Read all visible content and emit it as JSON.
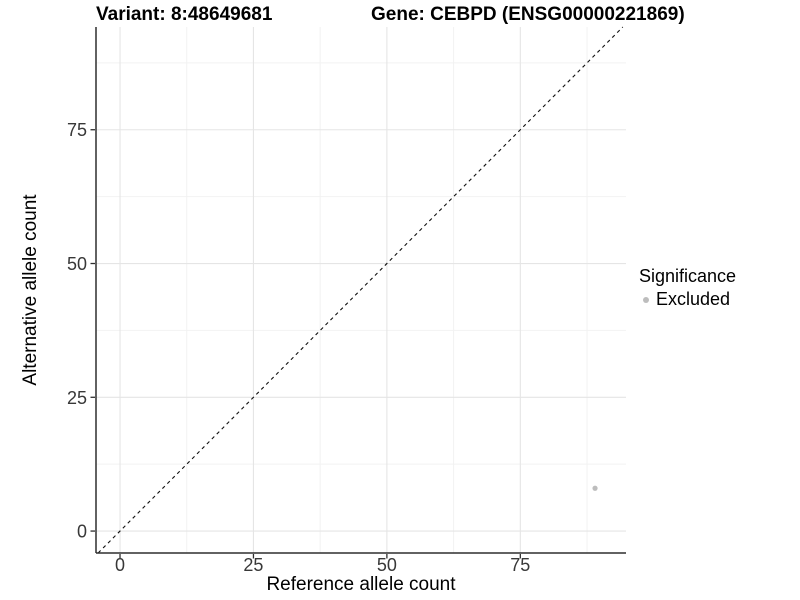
{
  "header": {
    "variant_title": "Variant: 8:48649681",
    "gene_title": "Gene: CEBPD (ENSG00000221869)"
  },
  "chart_data": {
    "type": "scatter",
    "title": "Variant: 8:48649681   Gene: CEBPD (ENSG00000221869)",
    "xlabel": "Reference allele count",
    "ylabel": "Alternative allele count",
    "xlim": [
      -4.5,
      94.8
    ],
    "ylim": [
      -4.1,
      94.2
    ],
    "x_ticks": [
      0,
      25,
      50,
      75
    ],
    "y_ticks": [
      0,
      25,
      50,
      75
    ],
    "x_minor_ticks": [
      12.5,
      37.5,
      62.5,
      87.5
    ],
    "y_minor_ticks": [
      12.5,
      37.5,
      62.5,
      87.5
    ],
    "grid": "major+minor",
    "points": [
      {
        "x": 89,
        "y": 8,
        "series": "Excluded"
      }
    ],
    "series": [
      {
        "name": "Excluded",
        "color": "#bdbdbd"
      }
    ],
    "reference_line": {
      "slope": 1,
      "intercept": 0,
      "style": "dashed",
      "color": "#111111"
    },
    "legend": {
      "title": "Significance",
      "position": "right",
      "entries": [
        {
          "label": "Excluded",
          "color": "#bdbdbd"
        }
      ]
    },
    "colors": {
      "axis_line": "#2e2e2e",
      "tick_label": "#383838",
      "grid_major": "#e5e5e5",
      "grid_minor": "#f2f2f2",
      "background": "#ffffff"
    }
  }
}
